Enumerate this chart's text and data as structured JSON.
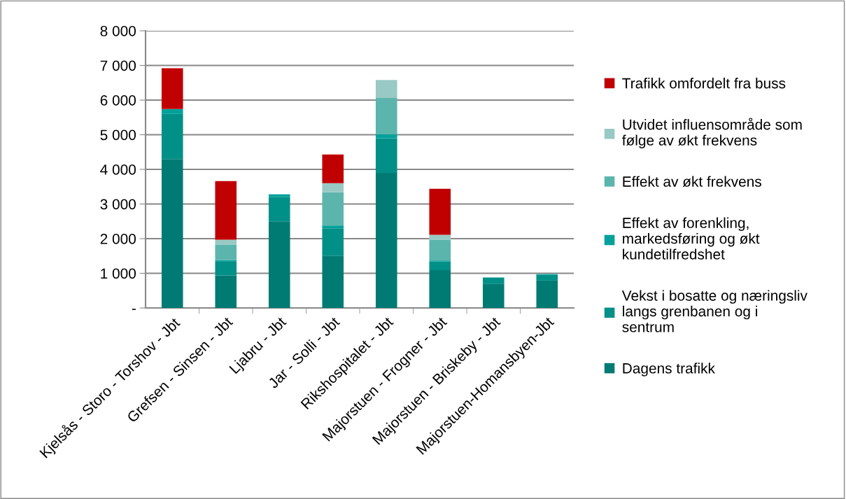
{
  "chart_data": {
    "type": "bar",
    "stacked": true,
    "categories": [
      "Kjelsås - Storo - Torshov - Jbt",
      "Grefsen - Sinsen - Jbt",
      "Ljabru - Jbt",
      "Jar - Solli - Jbt",
      "Rikshospitalet - Jbt",
      "Majorstuen - Frogner - Jbt",
      "Majorstuen - Briskeby - Jbt",
      "Majorstuen-Homansbyen-Jbt"
    ],
    "series": [
      {
        "name": "Dagens trafikk",
        "color": "#007b74",
        "values": [
          4300,
          940,
          2500,
          1510,
          3900,
          1090,
          700,
          790
        ]
      },
      {
        "name": "Vekst i bosatte og næringsliv\nlangs grenbanen og i\nsentrum",
        "color": "#009088",
        "values": [
          1300,
          410,
          700,
          790,
          1000,
          250,
          170,
          170
        ]
      },
      {
        "name": "Effekt av forenkling,\nmarkedsføring og økt\nkundetilfredshet",
        "color": "#00a19a",
        "values": [
          140,
          30,
          80,
          80,
          120,
          30,
          10,
          20
        ]
      },
      {
        "name": "Effekt av økt frekvens",
        "color": "#5bb5ad",
        "values": [
          null,
          450,
          null,
          960,
          1040,
          600,
          null,
          null
        ]
      },
      {
        "name": "Utvidet influensområde som\nfølge av økt frekvens",
        "color": "#98c9c4",
        "values": [
          null,
          140,
          null,
          260,
          520,
          140,
          null,
          null
        ]
      },
      {
        "name": "Trafikk omfordelt fra buss",
        "color": "#c00000",
        "values": [
          1180,
          1690,
          null,
          830,
          null,
          1330,
          null,
          null
        ]
      }
    ],
    "ylim": [
      0,
      8000
    ],
    "yticks": [
      {
        "value": 0,
        "label": "-"
      },
      {
        "value": 1000,
        "label": "1 000"
      },
      {
        "value": 2000,
        "label": "2 000"
      },
      {
        "value": 3000,
        "label": "3 000"
      },
      {
        "value": 4000,
        "label": "4 000"
      },
      {
        "value": 5000,
        "label": "5 000"
      },
      {
        "value": 6000,
        "label": "6 000"
      },
      {
        "value": 7000,
        "label": "7 000"
      },
      {
        "value": 8000,
        "label": "8 000"
      }
    ],
    "grid": "y",
    "legend": "right"
  }
}
